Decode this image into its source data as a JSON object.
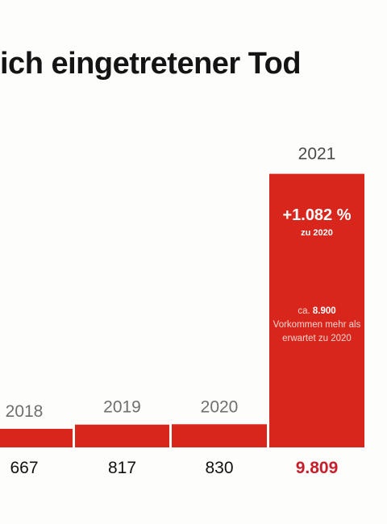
{
  "title": "ich eingetretener Tod",
  "colors": {
    "bar": "#d9261c",
    "highlight_value": "#c81e2c",
    "year_label": "#6f6f6f"
  },
  "chart_data": {
    "type": "bar",
    "title": "ich eingetretener Tod",
    "categories": [
      "2018",
      "2019",
      "2020",
      "2021"
    ],
    "values": [
      667,
      817,
      830,
      9809
    ],
    "value_labels": [
      "667",
      "817",
      "830",
      "9.809"
    ],
    "ylim": [
      0,
      10000
    ],
    "highlight_category": "2021",
    "annotations": {
      "change": "+1.082 %",
      "change_sub": "zu 2020",
      "note_prefix": "ca.",
      "note_value": "8.900",
      "note_rest": "Vorkommen mehr als erwartet zu 2020"
    }
  }
}
